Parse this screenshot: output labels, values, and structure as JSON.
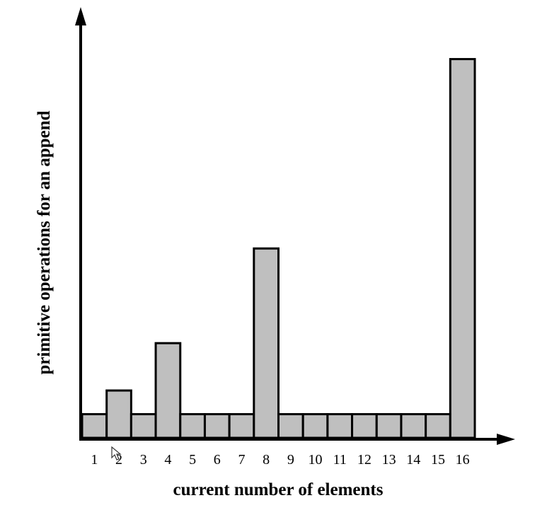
{
  "chart_data": {
    "type": "bar",
    "title": "",
    "xlabel": "current number of elements",
    "ylabel": "primitive operations for an append",
    "categories": [
      "1",
      "2",
      "3",
      "4",
      "5",
      "6",
      "7",
      "8",
      "9",
      "10",
      "11",
      "12",
      "13",
      "14",
      "15",
      "16"
    ],
    "values": [
      1,
      2,
      1,
      4,
      1,
      1,
      1,
      8,
      1,
      1,
      1,
      1,
      1,
      1,
      1,
      16
    ],
    "ylim": [
      0,
      17.6
    ],
    "grid": false,
    "legend": "none",
    "colors": {
      "bar_fill": "#bfbfbf",
      "bar_stroke": "#000000",
      "axis": "#000000"
    }
  },
  "overlay": {
    "cursor_icon": "mouse-pointer-icon"
  }
}
